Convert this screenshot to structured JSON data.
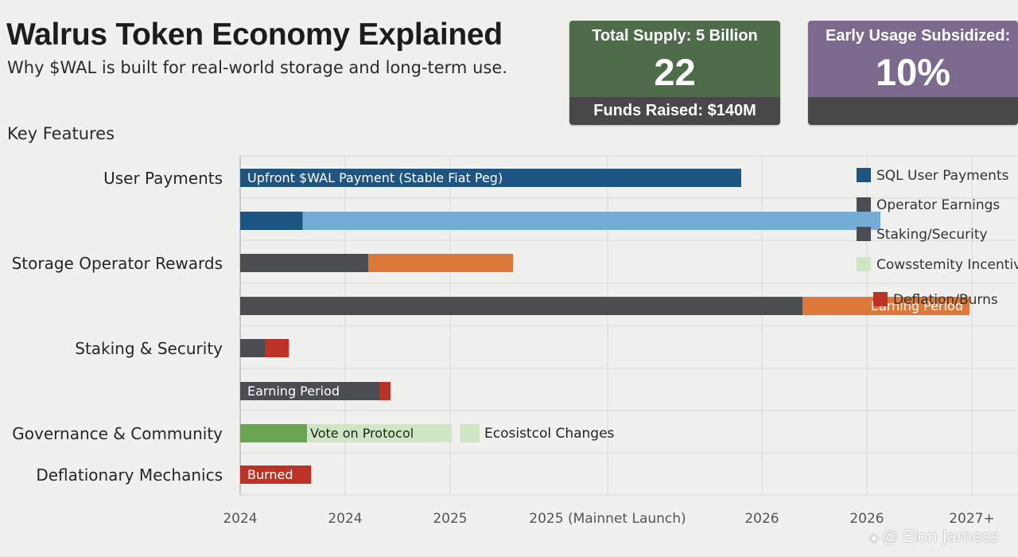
{
  "title": "Walrus Token Economy Explained",
  "subtitle": "Why $WAL is built for real-world storage and long-term use.",
  "section_label": "Key Features",
  "stats": {
    "supply": {
      "label": "Total Supply: 5 Billion",
      "value": "22",
      "footer": "Funds Raised: $140M",
      "color": "#4e6b4a"
    },
    "usage": {
      "label": "Early Usage Subsidized:",
      "value": "10%",
      "color": "#7b6a8e"
    }
  },
  "watermark": {
    "icon": "binance-logo",
    "text": "@ Elon Jamess"
  },
  "colors": {
    "user_payments": "#1d5480",
    "user_payments_light": "#74acd6",
    "operator": "#4a4d51",
    "orange": "#dc783a",
    "red": "#bd3226",
    "green": "#6aa552",
    "green_light": "#cfe6c4",
    "grid": "#d9d9d9"
  },
  "chart_data": {
    "type": "bar",
    "orientation": "horizontal",
    "x_ticks": [
      "2024",
      "2024",
      "2025",
      "2025 (Mainnet Launch)",
      "2026",
      "2026",
      "2027+"
    ],
    "x_range": [
      0,
      6
    ],
    "grid": true,
    "legend_position": "right",
    "legend": [
      {
        "name": "SQL User Payments",
        "color": "#1d5480"
      },
      {
        "name": "Operator Earnings",
        "color": "#4a4d51"
      },
      {
        "name": "Staking/Security",
        "color": "#4a4d51"
      },
      {
        "name": "Cowsstemity Incentives",
        "color": "#cfe6c4"
      },
      {
        "name": "Deflation/Burns",
        "color": "#bd3226"
      }
    ],
    "categories": [
      "User Payments",
      "",
      "Storage Operator Rewards",
      "",
      "Staking & Security",
      "",
      "Governance & Community",
      "Deflationary Mechanics"
    ],
    "rows": [
      {
        "category": "User Payments",
        "segments": [
          {
            "start": 0,
            "end": 3.6,
            "color": "#1d5480",
            "label": "Upfront $WAL Payment (Stable Fiat Peg)"
          }
        ]
      },
      {
        "category": "",
        "segments": [
          {
            "start": 0,
            "end": 0.45,
            "color": "#1d5480"
          },
          {
            "start": 0.45,
            "end": 4.6,
            "color": "#74acd6"
          }
        ]
      },
      {
        "category": "Storage Operator Rewards",
        "segments": [
          {
            "start": 0,
            "end": 0.92,
            "color": "#4a4d51"
          },
          {
            "start": 0.92,
            "end": 1.96,
            "color": "#dc783a"
          }
        ]
      },
      {
        "category": "",
        "segments": [
          {
            "start": 0,
            "end": 4.04,
            "color": "#4a4d51"
          },
          {
            "start": 4.04,
            "end": 5.24,
            "color": "#dc783a",
            "label": "Earning Period",
            "label_align": "right"
          }
        ]
      },
      {
        "category": "Staking & Security",
        "segments": [
          {
            "start": 0,
            "end": 0.18,
            "color": "#4a4d51"
          },
          {
            "start": 0.18,
            "end": 0.35,
            "color": "#bd3226"
          }
        ]
      },
      {
        "category": "",
        "segments": [
          {
            "start": 0,
            "end": 1.0,
            "color": "#4a4d51",
            "label": "Earning Period"
          },
          {
            "start": 1.0,
            "end": 1.08,
            "color": "#bd3226"
          }
        ]
      },
      {
        "category": "Governance & Community",
        "segments": [
          {
            "start": 0,
            "end": 0.48,
            "color": "#6aa552"
          },
          {
            "start": 0.48,
            "end": 1.52,
            "color": "#cfe6c4",
            "label": "Vote on Protocol",
            "label_color": "#222"
          },
          {
            "start": 1.58,
            "end": 1.72,
            "color": "#cfe6c4",
            "label": "Ecosistcol Changes",
            "label_color": "#222",
            "label_outside": true
          }
        ]
      },
      {
        "category": "Deflationary Mechanics",
        "segments": [
          {
            "start": 0,
            "end": 0.51,
            "color": "#bd3226",
            "label": "Burned"
          }
        ]
      }
    ]
  }
}
